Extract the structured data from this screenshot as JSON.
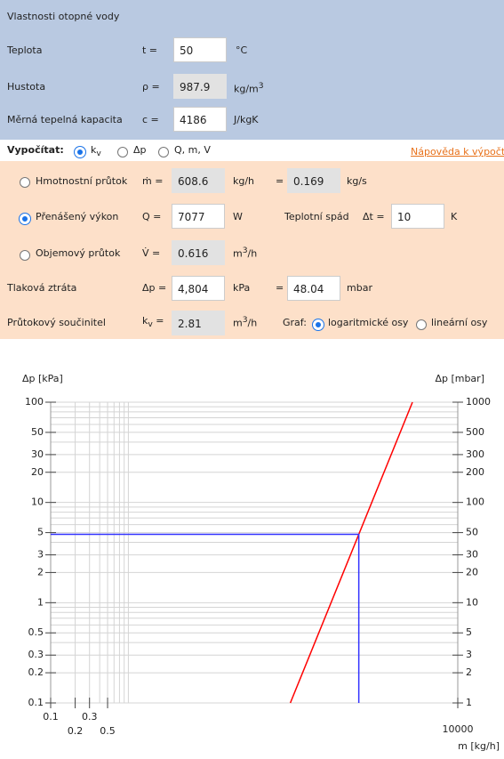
{
  "water": {
    "title": "Vlastnosti otopné vody",
    "rows": [
      {
        "label": "Teplota",
        "symbol": "t =",
        "value": "50",
        "unit": "°C"
      },
      {
        "label": "Hustota",
        "symbol": "ρ =",
        "value": "987.9",
        "unit": "kg/m",
        "unit_sup": "3"
      },
      {
        "label": "Měrná tepelná kapacita",
        "symbol": "c =",
        "value": "4186",
        "unit": "J/kgK"
      }
    ]
  },
  "calc": {
    "label": "Vypočítat:",
    "options": [
      {
        "text": "k",
        "sub": "v"
      },
      {
        "text": "Δp"
      },
      {
        "text": "Q, m, V"
      }
    ],
    "help": "Nápověda k výpočt"
  },
  "flow": {
    "mass": {
      "label": "Hmotnostní průtok",
      "symbol": "ṁ =",
      "value": "608.6",
      "unit": "kg/h",
      "eq": "=",
      "value2": "0.169",
      "unit2": "kg/s"
    },
    "power": {
      "label": "Přenášený výkon",
      "symbol": "Q =",
      "value": "7077",
      "unit": "W",
      "label2": "Teplotní spád",
      "symbol2": "Δt =",
      "value2": "10",
      "unit2": "K"
    },
    "volume": {
      "label": "Objemový průtok",
      "symbol": "V̇ =",
      "value": "0.616",
      "unit": "m",
      "unit_sup": "3",
      "unit_tail": "/h"
    },
    "loss": {
      "label": "Tlaková ztráta",
      "symbol": "Δp =",
      "value": "4,804",
      "unit": "kPa",
      "eq": "=",
      "value2": "48.04",
      "unit2": "mbar"
    },
    "kv": {
      "label": "Průtokový součinitel",
      "symbol": "k",
      "symbol_sub": "v",
      "symbol_tail": " =",
      "value": "2.81",
      "unit": "m",
      "unit_sup": "3",
      "unit_tail": "/h",
      "graph": "Graf:",
      "opt1": "logaritmické osy",
      "opt2": "lineární osy"
    }
  },
  "chart_data": {
    "type": "line",
    "ylabel": "Δp [kPa]",
    "y2label": "Δp [mbar]",
    "xlabel": "m [kg/h]",
    "xlog": true,
    "ylog": true,
    "xlim": [
      0.1,
      10000
    ],
    "ylim": [
      0.1,
      100
    ],
    "y2lim": [
      1,
      1000
    ],
    "xticks": [
      0.1,
      0.2,
      0.3,
      0.5,
      10000
    ],
    "yticks": [
      0.1,
      0.2,
      0.3,
      0.5,
      1,
      2,
      3,
      5,
      10,
      20,
      30,
      50,
      100
    ],
    "y2ticks": [
      1,
      2,
      3,
      5,
      10,
      20,
      30,
      50,
      100,
      200,
      300,
      500,
      1000
    ],
    "xgrid": [
      0.2,
      0.3,
      0.4,
      0.5,
      0.6,
      0.7,
      0.8,
      0.9
    ],
    "ygrid": [
      0.1,
      0.2,
      0.3,
      0.4,
      0.5,
      0.6,
      0.7,
      0.8,
      0.9,
      1,
      2,
      3,
      4,
      5,
      6,
      7,
      8,
      9,
      10,
      20,
      30,
      40,
      50,
      60,
      70,
      80,
      90,
      100
    ],
    "series": [
      {
        "color": "#ff0000",
        "x": [
          87.8,
          2776
        ],
        "values": [
          0.1,
          100
        ]
      },
      {
        "color": "#3333ff",
        "x": [
          0.1,
          608.6,
          608.6
        ],
        "values": [
          4.804,
          4.804,
          0.1
        ]
      }
    ]
  }
}
